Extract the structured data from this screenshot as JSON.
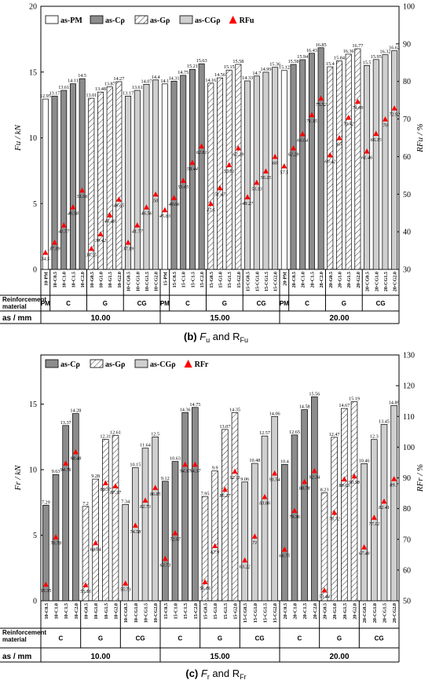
{
  "chart_data": [
    {
      "type": "bar",
      "caption_letter": "(b)",
      "caption_text": "F",
      "caption_sub": "u",
      "caption_and": "and R",
      "caption_sub2": "Fu",
      "ylabel_left": "Fu / kN",
      "ylabel_right": "RFu / %",
      "ylim": [
        0,
        20
      ],
      "ylim_right": [
        30,
        100
      ],
      "yticks": [
        0,
        5,
        10,
        15,
        20
      ],
      "yticks_right": [
        30,
        40,
        50,
        60,
        70,
        80,
        90,
        100
      ],
      "legend": [
        {
          "key": "PM",
          "label": "as-PM"
        },
        {
          "key": "C",
          "label": "as-Cρ"
        },
        {
          "key": "G",
          "label": "as-Gρ"
        },
        {
          "key": "CG",
          "label": "as-CGρ"
        },
        {
          "key": "R",
          "label": "RFu"
        }
      ],
      "table_header_1": "Reinforcement material",
      "table_header_2": "as / mm",
      "groups": [
        {
          "as": "10.00",
          "materials": [
            {
              "label": "PM",
              "series": "PM",
              "cats": [
                "10-PM"
              ],
              "values": [
                12.95
              ],
              "ratios": [
                34.5
              ]
            },
            {
              "label": "C",
              "series": "C",
              "cats": [
                "10-C0.5",
                "10-C1.0",
                "10-C1.5",
                "10-C2.0"
              ],
              "values": [
                13.17,
                13.61,
                14.11,
                14.5
              ],
              "ratios": [
                37.19,
                41.77,
                46.58,
                51.06
              ]
            },
            {
              "label": "G",
              "series": "G",
              "cats": [
                "10-G0.5",
                "10-G1.0",
                "10-G1.5",
                "10-G2.0"
              ],
              "values": [
                13.01,
                13.48,
                13.87,
                14.27
              ],
              "ratios": [
                35.55,
                39.42,
                44.48,
                48.65
              ]
            },
            {
              "label": "CG",
              "series": "CG",
              "cats": [
                "10-CG0.5",
                "10-CG1.0",
                "10-CG1.5",
                "10-CG2.0"
              ],
              "values": [
                13.17,
                13.61,
                14.07,
                14.4
              ],
              "ratios": [
                37.19,
                41.77,
                46.56,
                50
              ]
            }
          ]
        },
        {
          "as": "15.00",
          "materials": [
            {
              "label": "PM",
              "series": "PM",
              "cats": [
                "15-PM"
              ],
              "values": [
                14.1
              ],
              "ratios": [
                45.83
              ]
            },
            {
              "label": "C",
              "series": "C",
              "cats": [
                "15-C0.5",
                "15-C1.0",
                "15-C1.5",
                "15-C2.0"
              ],
              "values": [
                14.31,
                14.75,
                15.21,
                15.63
              ],
              "ratios": [
                49.06,
                53.65,
                58.44,
                62.81
              ]
            },
            {
              "label": "G",
              "series": "G",
              "cats": [
                "15-G0.5",
                "15-G1.0",
                "15-G1.5",
                "15-G2.0"
              ],
              "values": [
                14.16,
                14.56,
                15.15,
                15.58
              ],
              "ratios": [
                47.5,
                51.67,
                57.81,
                62.29
              ]
            },
            {
              "label": "CG",
              "series": "CG",
              "cats": [
                "15-CG0.5",
                "15-CG1.0",
                "15-CG1.5",
                "15-CG2.0"
              ],
              "values": [
                14.33,
                14.7,
                14.99,
                15.36
              ],
              "ratios": [
                49.27,
                53.13,
                56.15,
                60
              ]
            }
          ]
        },
        {
          "as": "20.00",
          "materials": [
            {
              "label": "PM",
              "series": "PM",
              "cats": [
                "20-PM"
              ],
              "values": [
                15.12
              ],
              "ratios": [
                57.5
              ]
            },
            {
              "label": "C",
              "series": "C",
              "cats": [
                "20-C0.5",
                "20-C1.0",
                "20-C1.5",
                "20-C2.0"
              ],
              "values": [
                15.58,
                15.94,
                16.43,
                16.85
              ],
              "ratios": [
                62.29,
                66.04,
                71.15,
                75.52
              ]
            },
            {
              "label": "G",
              "series": "G",
              "cats": [
                "20-G0.5",
                "20-G1.0",
                "20-G1.5",
                "20-G2.0"
              ],
              "values": [
                15.4,
                15.84,
                16.36,
                16.77
              ],
              "ratios": [
                60.42,
                65,
                70.42,
                74.69
              ]
            },
            {
              "label": "CG",
              "series": "CG",
              "cats": [
                "20-CG0.5",
                "20-CG1.0",
                "20-CG1.5",
                "20-CG2.0"
              ],
              "values": [
                15.5,
                15.95,
                16.32,
                16.62
              ],
              "ratios": [
                61.46,
                66.15,
                70,
                72.92
              ]
            }
          ]
        }
      ]
    },
    {
      "type": "bar",
      "caption_letter": "(c)",
      "caption_text": "F",
      "caption_sub": "r",
      "caption_and": "and R",
      "caption_sub2": "Fr",
      "ylabel_left": "Fr / kN",
      "ylabel_right": "RFr / %",
      "ylim": [
        0,
        18.75
      ],
      "ylim_right": [
        50,
        130
      ],
      "yticks": [
        0,
        5,
        10,
        15
      ],
      "yticks_right": [
        50,
        60,
        70,
        80,
        90,
        100,
        110,
        120,
        130
      ],
      "legend": [
        {
          "key": "C",
          "label": "as-Cρ"
        },
        {
          "key": "G",
          "label": "as-Gρ"
        },
        {
          "key": "CG",
          "label": "as-CGρ"
        },
        {
          "key": "R",
          "label": "RFr"
        }
      ],
      "table_header_1": "Reinforcement material",
      "table_header_2": "as / mm",
      "groups": [
        {
          "as": "10.00",
          "materials": [
            {
              "label": "C",
              "series": "C",
              "cats": [
                "10-C0.5",
                "10-C1.0",
                "10-C1.5",
                "10-C2.0"
              ],
              "values": [
                7.29,
                9.63,
                13.37,
                14.28
              ],
              "ratios": [
                55.35,
                70.78,
                94.76,
                98.48
              ]
            },
            {
              "label": "G",
              "series": "G",
              "cats": [
                "10-G0.5",
                "10-G1.0",
                "10-G1.5",
                "10-G2.0"
              ],
              "values": [
                7.2,
                9.28,
                12.31,
                12.61
              ],
              "ratios": [
                55.16,
                68.84,
                88.37,
                87.37
              ]
            },
            {
              "label": "CG",
              "series": "CG",
              "cats": [
                "10-CG0.5",
                "10-CG1.0",
                "10-CG1.5",
                "10-CG2.0"
              ],
              "values": [
                7.34,
                10.15,
                11.64,
                12.5
              ],
              "ratios": [
                55.73,
                74.58,
                82.73,
                86.85
              ]
            }
          ]
        },
        {
          "as": "15.00",
          "materials": [
            {
              "label": "C",
              "series": "C",
              "cats": [
                "15-C0.5",
                "15-C1.0",
                "15-C1.5",
                "15-C2.0"
              ],
              "values": [
                9.12,
                10.63,
                14.36,
                14.75
              ],
              "ratios": [
                63.73,
                72.07,
                94.37,
                94.37
              ]
            },
            {
              "label": "G",
              "series": "G",
              "cats": [
                "15-G0.5",
                "15-G1.0",
                "15-G1.5",
                "15-G2.0"
              ],
              "values": [
                7.95,
                9.9,
                13.07,
                14.35
              ],
              "ratios": [
                56.16,
                67.9,
                86.27,
                92.11
              ]
            },
            {
              "label": "CG",
              "series": "CG",
              "cats": [
                "15-CG0.5",
                "15-CG1.0",
                "15-CG1.5",
                "15-CG2.0"
              ],
              "values": [
                9.06,
                10.48,
                12.57,
                14.06
              ],
              "ratios": [
                63.22,
                71,
                83.86,
                91.54
              ]
            }
          ]
        },
        {
          "as": "20.00",
          "materials": [
            {
              "label": "C",
              "series": "C",
              "cats": [
                "20-C0.5",
                "20-C1.0",
                "20-C1.5",
                "20-C2.0"
              ],
              "values": [
                10.4,
                12.65,
                14.58,
                15.56
              ],
              "ratios": [
                66.75,
                79.36,
                88.78,
                92.34
              ]
            },
            {
              "label": "G",
              "series": "G",
              "cats": [
                "20-G0.5",
                "20-G1.0",
                "20-G1.5",
                "20-G2.0"
              ],
              "values": [
                8.23,
                12.47,
                14.67,
                15.19
              ],
              "ratios": [
                53.44,
                78.72,
                89.63,
                90.58
              ]
            },
            {
              "label": "CG",
              "series": "CG",
              "cats": [
                "20-CG0.5",
                "20-CG1.0",
                "20-CG1.5",
                "20-CG2.0"
              ],
              "values": [
                10.46,
                12.3,
                13.45,
                14.89
              ],
              "ratios": [
                67.48,
                77.12,
                82.41,
                89.7
              ]
            }
          ]
        }
      ]
    }
  ],
  "colors": {
    "PM": "#ffffff",
    "C": "#8c8c8c",
    "G": "#ffffff",
    "CG": "#cfcfcf",
    "marker": "#ff0000"
  }
}
